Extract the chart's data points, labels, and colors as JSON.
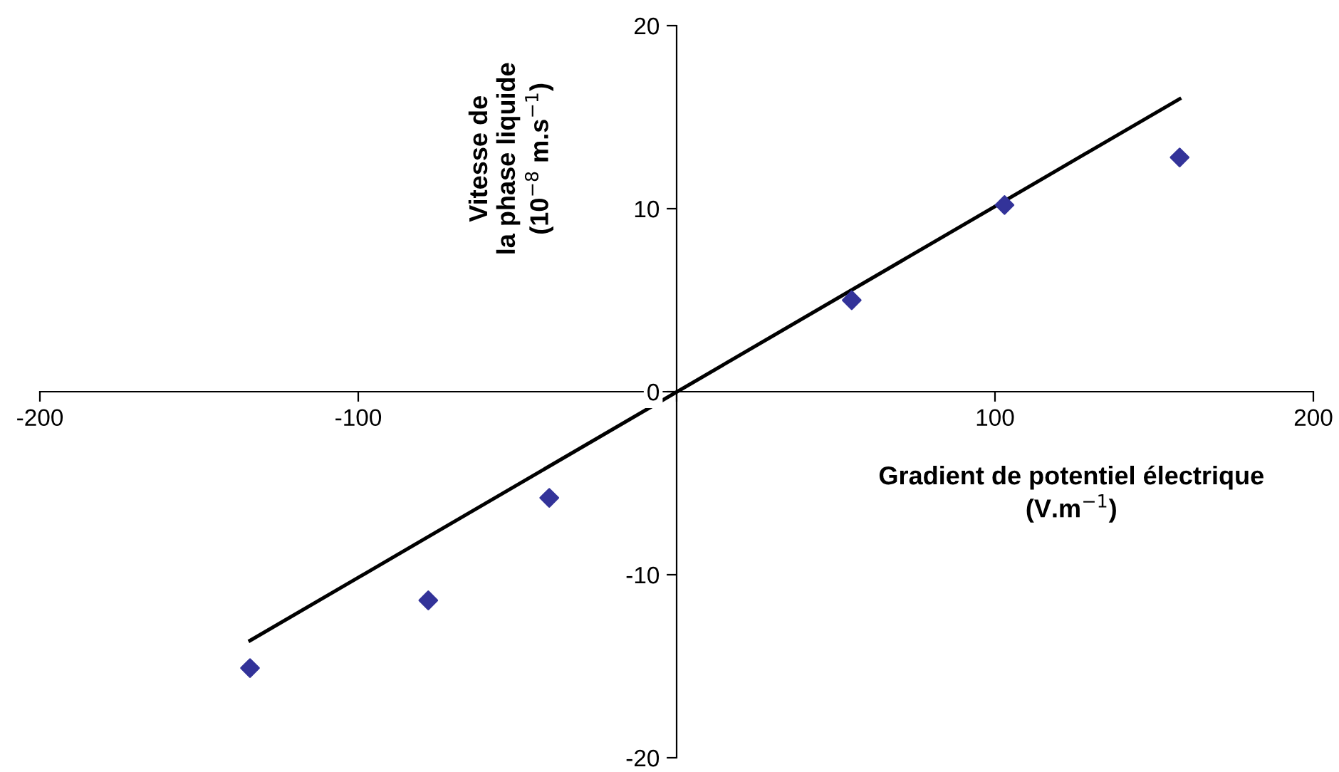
{
  "chart_data": {
    "type": "scatter",
    "xlabel": "Gradient de potentiel électrique\n(V.m$^{−1}$)",
    "ylabel": "Vitesse de\nla phase liquide\n(10$^{−8}$ m.s$^{−1}$)",
    "xlim": [
      -200,
      200
    ],
    "xticks": [
      -200,
      -100,
      {
        "value": 0,
        "label": null
      },
      100,
      200
    ],
    "ylim": [
      -20,
      20
    ],
    "yticks": [
      -20,
      -10,
      0,
      10,
      20
    ],
    "grid": false,
    "legend": false,
    "series": [
      {
        "color": "#333399",
        "marker": "diamond",
        "x": [
          -134,
          -78,
          -40,
          55,
          103,
          158
        ],
        "values": [
          -15.1,
          -11.4,
          -5.8,
          5.0,
          10.2,
          12.8
        ]
      },
      {
        "type": "line",
        "color": "#000000",
        "marker": "none",
        "line_style": "solid",
        "x": [
          -134,
          158
        ],
        "values": [
          -13.6,
          16.0
        ]
      }
    ]
  }
}
